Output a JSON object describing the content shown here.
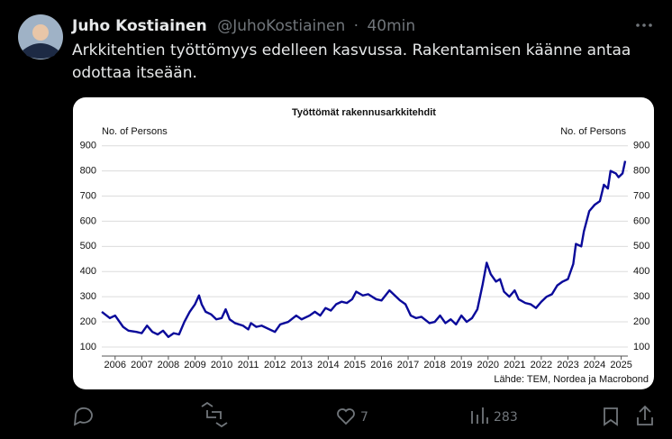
{
  "tweet": {
    "name": "Juho Kostiainen",
    "handle": "@JuhoKostiainen",
    "separator": "·",
    "time": "40min",
    "text": [
      "Arkkitehtien työttömyys edelleen kasvussa. Rakentamisen käänne antaa",
      "odottaa itseään."
    ],
    "likes": "7",
    "views": "283"
  },
  "chart_data": {
    "type": "line",
    "title": "Työttömät rakennusarkkitehdit",
    "ylabel": "No. of Persons",
    "y2label": "No. of Persons",
    "source": "Lähde: TEM, Nordea ja Macrobond",
    "xlim": [
      2006,
      2025.75
    ],
    "ylim": [
      64,
      942
    ],
    "y2lim": [
      64,
      942
    ],
    "grid": true,
    "xticks": [
      {
        "value": 2006.5,
        "label": "2006"
      },
      {
        "value": 2007.5,
        "label": "2007"
      },
      {
        "value": 2008.5,
        "label": "2008"
      },
      {
        "value": 2009.5,
        "label": "2009"
      },
      {
        "value": 2010.5,
        "label": "2010"
      },
      {
        "value": 2011.5,
        "label": "2011"
      },
      {
        "value": 2012.5,
        "label": "2012"
      },
      {
        "value": 2013.5,
        "label": "2013"
      },
      {
        "value": 2014.5,
        "label": "2014"
      },
      {
        "value": 2015.5,
        "label": "2015"
      },
      {
        "value": 2016.5,
        "label": "2016"
      },
      {
        "value": 2017.5,
        "label": "2017"
      },
      {
        "value": 2018.5,
        "label": "2018"
      },
      {
        "value": 2019.5,
        "label": "2019"
      },
      {
        "value": 2020.5,
        "label": "2020"
      },
      {
        "value": 2021.5,
        "label": "2021"
      },
      {
        "value": 2022.5,
        "label": "2022"
      },
      {
        "value": 2023.5,
        "label": "2023"
      },
      {
        "value": 2024.5,
        "label": "2024"
      },
      {
        "value": 2025.5,
        "label": "2025"
      }
    ],
    "yticks": [
      100,
      200,
      300,
      400,
      500,
      600,
      700,
      800,
      900
    ],
    "y2ticks": [
      100,
      200,
      300,
      400,
      500,
      600,
      700,
      800,
      900
    ],
    "series": [
      {
        "color": "#0a0a9a",
        "x": [
          2006.0,
          2006.3,
          2006.5,
          2006.8,
          2007.0,
          2007.3,
          2007.5,
          2007.7,
          2007.9,
          2008.1,
          2008.3,
          2008.5,
          2008.7,
          2008.9,
          2009.1,
          2009.3,
          2009.5,
          2009.65,
          2009.75,
          2009.9,
          2010.1,
          2010.3,
          2010.5,
          2010.65,
          2010.8,
          2011.0,
          2011.3,
          2011.5,
          2011.6,
          2011.8,
          2012.0,
          2012.3,
          2012.5,
          2012.7,
          2013.0,
          2013.3,
          2013.5,
          2013.8,
          2014.0,
          2014.2,
          2014.4,
          2014.6,
          2014.8,
          2015.0,
          2015.2,
          2015.4,
          2015.55,
          2015.8,
          2016.0,
          2016.3,
          2016.5,
          2016.8,
          2017.0,
          2017.2,
          2017.4,
          2017.6,
          2017.8,
          2018.0,
          2018.3,
          2018.5,
          2018.7,
          2018.9,
          2019.1,
          2019.3,
          2019.5,
          2019.7,
          2019.9,
          2020.1,
          2020.3,
          2020.45,
          2020.6,
          2020.8,
          2020.95,
          2021.1,
          2021.3,
          2021.5,
          2021.65,
          2021.9,
          2022.1,
          2022.3,
          2022.5,
          2022.7,
          2022.9,
          2023.1,
          2023.3,
          2023.5,
          2023.7,
          2023.8,
          2024.0,
          2024.1,
          2024.3,
          2024.5,
          2024.7,
          2024.85,
          2025.0,
          2025.1,
          2025.3,
          2025.4,
          2025.55,
          2025.65
        ],
        "values": [
          240,
          215,
          225,
          180,
          165,
          160,
          155,
          185,
          160,
          150,
          165,
          140,
          155,
          150,
          200,
          240,
          270,
          305,
          270,
          240,
          230,
          210,
          215,
          250,
          210,
          195,
          185,
          170,
          195,
          180,
          185,
          170,
          160,
          190,
          200,
          225,
          210,
          225,
          240,
          225,
          255,
          245,
          270,
          280,
          275,
          290,
          320,
          305,
          310,
          290,
          285,
          325,
          305,
          285,
          270,
          225,
          215,
          220,
          195,
          200,
          225,
          195,
          210,
          190,
          225,
          200,
          215,
          250,
          350,
          435,
          390,
          360,
          370,
          320,
          300,
          325,
          290,
          275,
          270,
          255,
          280,
          300,
          310,
          345,
          360,
          370,
          430,
          510,
          500,
          560,
          640,
          665,
          680,
          745,
          730,
          800,
          790,
          775,
          790,
          840
        ]
      }
    ]
  }
}
